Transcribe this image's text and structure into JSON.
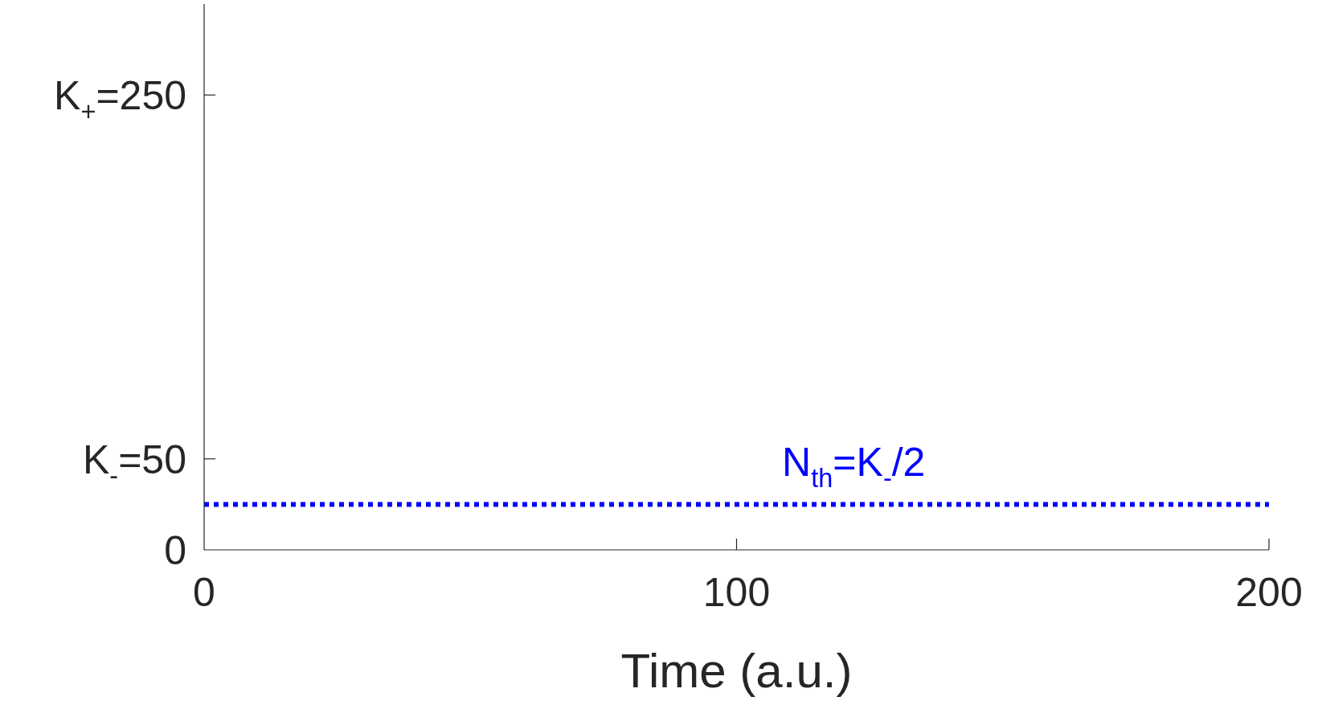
{
  "chart_data": {
    "type": "line",
    "xlabel": "Time (a.u.)",
    "xlim": [
      0,
      200
    ],
    "xticks": [
      0,
      100,
      200
    ],
    "ylim": [
      0,
      300
    ],
    "yticks": [
      0,
      {
        "value": 50,
        "label": "K$_{-}$=50"
      },
      {
        "value": 250,
        "label": "K$_{+}$=250"
      }
    ],
    "ref_lines": [
      {
        "axis": "y",
        "value": 25,
        "label": "N$_{th}$=K$_{-}$/2",
        "color": "#0000ff",
        "line_style": "dotted"
      }
    ],
    "grid": false
  }
}
